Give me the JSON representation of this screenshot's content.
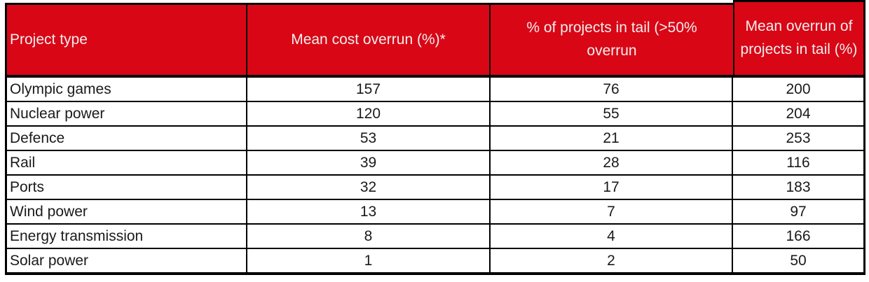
{
  "chart_data": {
    "type": "table",
    "columns": [
      "Project type",
      "Mean cost overrun (%)*",
      "% of projects in tail (>50% overrun",
      "Mean overrun of projects in tail (%)"
    ],
    "rows": [
      [
        "Olympic games",
        157,
        76,
        200
      ],
      [
        "Nuclear power",
        120,
        55,
        204
      ],
      [
        "Defence",
        53,
        21,
        253
      ],
      [
        "Rail",
        39,
        28,
        116
      ],
      [
        "Ports",
        32,
        17,
        183
      ],
      [
        "Wind power",
        13,
        7,
        97
      ],
      [
        "Energy transmission",
        8,
        4,
        166
      ],
      [
        "Solar power",
        1,
        2,
        50
      ]
    ]
  },
  "colors": {
    "header_bg": "#d90616",
    "header_text": "#f2efee",
    "border": "#000000",
    "body_text": "#1a1a1a",
    "row_bg": "#ffffff"
  }
}
